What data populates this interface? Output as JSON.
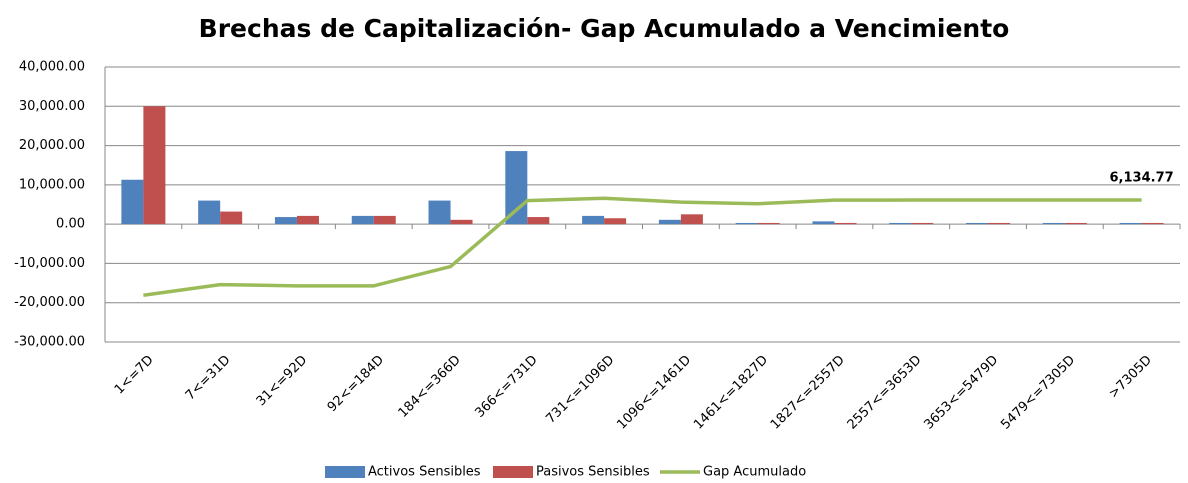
{
  "chart_data": {
    "type": "bar",
    "title": "Brechas de Capitalización- Gap Acumulado a Vencimiento",
    "categories": [
      "1<=7D",
      "7<=31D",
      "31<=92D",
      "92<=184D",
      "184<=366D",
      "366<=731D",
      "731<=1096D",
      "1096<=1461D",
      "1461<=1827D",
      "1827<=2557D",
      "2557<=3653D",
      "3653<=5479D",
      "5479<=7305D",
      ">7305D"
    ],
    "series": [
      {
        "name": "Activos Sensibles",
        "color": "#4f81bd",
        "type": "bar",
        "values": [
          11300,
          6000,
          1800,
          2100,
          6000,
          18600,
          2100,
          1100,
          300,
          700,
          300,
          300,
          300,
          300
        ]
      },
      {
        "name": "Pasivos Sensibles",
        "color": "#c0504d",
        "type": "bar",
        "values": [
          30000,
          3200,
          2100,
          2100,
          1100,
          1800,
          1500,
          2500,
          300,
          300,
          300,
          300,
          300,
          300
        ]
      },
      {
        "name": "Gap Acumulado",
        "color": "#9bbb59",
        "type": "line",
        "values": [
          -18100,
          -15400,
          -15700,
          -15700,
          -10800,
          6000,
          6600,
          5600,
          5200,
          6100,
          6134.77,
          6134.77,
          6134.77,
          6134.77
        ],
        "value_labels": [
          null,
          null,
          null,
          null,
          null,
          null,
          null,
          null,
          null,
          null,
          null,
          null,
          null,
          "6,134.77"
        ]
      }
    ],
    "ylim": [
      -30000,
      40000
    ],
    "yticks": [
      {
        "value": -30000,
        "label": "-30,000.00"
      },
      {
        "value": -20000,
        "label": "-20,000.00"
      },
      {
        "value": -10000,
        "label": "-10,000.00"
      },
      {
        "value": 0,
        "label": "0.00"
      },
      {
        "value": 10000,
        "label": "10,000.00"
      },
      {
        "value": 20000,
        "label": "20,000.00"
      },
      {
        "value": 30000,
        "label": "30,000.00"
      },
      {
        "value": 40000,
        "label": "40,000.00"
      }
    ],
    "grid": true,
    "legend": "bottom"
  }
}
